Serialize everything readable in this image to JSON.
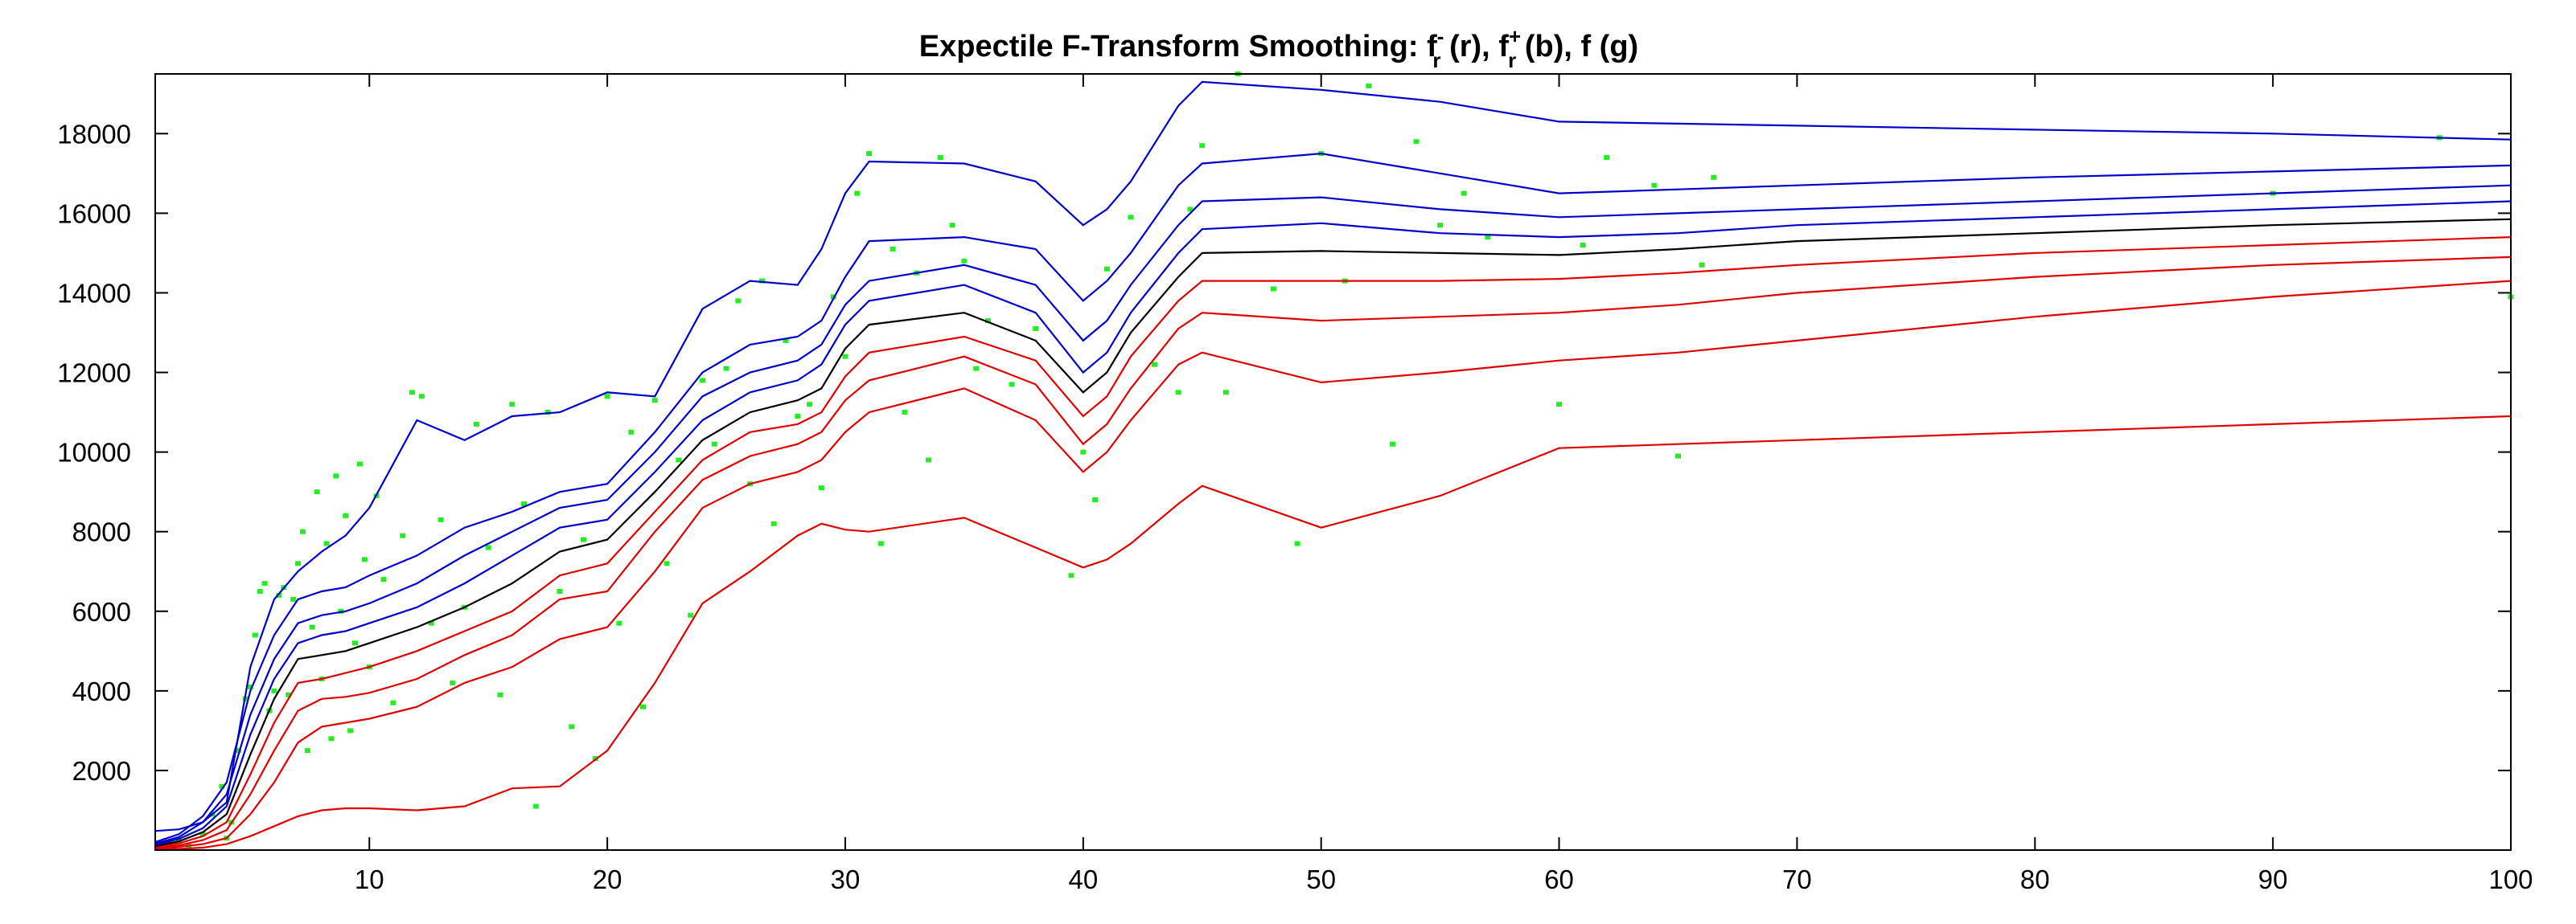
{
  "chart_data": {
    "type": "line",
    "title": {
      "prefix": "Expectile F-Transform Smoothing: ",
      "f1": "f",
      "f1_sub": "r",
      "f1_sup": "-",
      "s1": " (r), ",
      "f2": "f",
      "f2_sub": "r",
      "f2_sup": "+",
      "s2": " (b), f (g)"
    },
    "xlabel": "",
    "ylabel": "",
    "xlim": [
      1,
      100
    ],
    "ylim": [
      0,
      19500
    ],
    "xticks": [
      10,
      20,
      30,
      40,
      50,
      60,
      70,
      80,
      90,
      100
    ],
    "yticks": [
      2000,
      4000,
      6000,
      8000,
      10000,
      12000,
      14000,
      16000,
      18000
    ],
    "grid": false,
    "colors": {
      "lower": "#e00000",
      "upper": "#0000cc",
      "middle": "#000000",
      "points": "#22ee22"
    },
    "x": [
      1,
      2,
      3,
      4,
      5,
      6,
      7,
      8,
      9,
      10,
      12,
      14,
      16,
      18,
      20,
      22,
      24,
      26,
      28,
      29,
      30,
      31,
      35,
      38,
      40,
      41,
      42,
      44,
      45,
      50,
      55,
      60,
      65,
      70,
      80,
      90,
      100
    ],
    "series": [
      {
        "role": "lower",
        "values": [
          20,
          30,
          60,
          150,
          350,
          600,
          850,
          1000,
          1050,
          1050,
          1000,
          1100,
          1550,
          1600,
          2500,
          4200,
          6200,
          7000,
          7900,
          8200,
          8050,
          8000,
          8350,
          7600,
          7100,
          7300,
          7700,
          8700,
          9150,
          8100,
          8900,
          10100,
          10200,
          10300,
          10500,
          10700,
          10900
        ]
      },
      {
        "role": "lower",
        "values": [
          40,
          80,
          150,
          300,
          900,
          1700,
          2700,
          3100,
          3200,
          3300,
          3600,
          4200,
          4600,
          5300,
          5600,
          7000,
          8600,
          9200,
          9500,
          9800,
          10500,
          11000,
          11600,
          10800,
          9500,
          10000,
          10800,
          12200,
          12500,
          11750,
          12000,
          12300,
          12500,
          12800,
          13400,
          13900,
          14300
        ]
      },
      {
        "role": "lower",
        "values": [
          60,
          120,
          250,
          500,
          1400,
          2500,
          3500,
          3800,
          3850,
          3950,
          4300,
          4900,
          5400,
          6300,
          6500,
          8000,
          9300,
          9900,
          10200,
          10500,
          11300,
          11800,
          12400,
          11700,
          10200,
          10700,
          11600,
          13100,
          13500,
          13300,
          13400,
          13500,
          13700,
          14000,
          14400,
          14700,
          14900
        ]
      },
      {
        "role": "lower",
        "values": [
          80,
          170,
          350,
          700,
          1900,
          3200,
          4200,
          4300,
          4450,
          4600,
          5000,
          5500,
          6000,
          6900,
          7200,
          8500,
          9800,
          10500,
          10700,
          11000,
          11900,
          12500,
          12900,
          12300,
          10900,
          11400,
          12400,
          13800,
          14300,
          14300,
          14300,
          14350,
          14500,
          14700,
          15000,
          15200,
          15400
        ]
      },
      {
        "role": "middle",
        "values": [
          100,
          220,
          450,
          900,
          2400,
          3800,
          4800,
          4900,
          5000,
          5200,
          5600,
          6100,
          6700,
          7500,
          7800,
          9000,
          10300,
          11000,
          11300,
          11600,
          12600,
          13200,
          13500,
          12800,
          11500,
          12000,
          13000,
          14400,
          15000,
          15050,
          15000,
          14950,
          15100,
          15300,
          15500,
          15700,
          15850
        ]
      },
      {
        "role": "upper",
        "values": [
          130,
          280,
          550,
          1100,
          2900,
          4300,
          5200,
          5400,
          5500,
          5700,
          6100,
          6700,
          7400,
          8100,
          8300,
          9500,
          10800,
          11500,
          11800,
          12200,
          13200,
          13800,
          14200,
          13500,
          12000,
          12500,
          13500,
          15000,
          15600,
          15750,
          15500,
          15400,
          15500,
          15700,
          15900,
          16100,
          16300
        ]
      },
      {
        "role": "upper",
        "values": [
          160,
          330,
          700,
          1400,
          3400,
          4800,
          5700,
          5900,
          6000,
          6200,
          6700,
          7400,
          8000,
          8600,
          8800,
          10000,
          11400,
          12000,
          12300,
          12700,
          13700,
          14300,
          14700,
          14200,
          12800,
          13300,
          14200,
          15700,
          16300,
          16400,
          16100,
          15900,
          16000,
          16100,
          16300,
          16500,
          16700
        ]
      },
      {
        "role": "upper",
        "values": [
          200,
          400,
          850,
          1700,
          4000,
          5400,
          6300,
          6500,
          6600,
          6900,
          7400,
          8100,
          8500,
          9000,
          9200,
          10500,
          12000,
          12700,
          12900,
          13300,
          14400,
          15300,
          15400,
          15100,
          13800,
          14300,
          15000,
          16700,
          17250,
          17500,
          17000,
          16500,
          16600,
          16700,
          16900,
          17050,
          17200
        ]
      },
      {
        "role": "upper",
        "values": [
          480,
          520,
          700,
          1200,
          4600,
          6300,
          7000,
          7500,
          7900,
          8600,
          10800,
          10300,
          10900,
          11000,
          11500,
          11400,
          13600,
          14300,
          14200,
          15100,
          16500,
          17300,
          17250,
          16800,
          15700,
          16100,
          16800,
          18700,
          19300,
          19100,
          18800,
          18300,
          18250,
          18200,
          18100,
          18000,
          17850
        ]
      }
    ],
    "points": [
      [
        1.5,
        150
      ],
      [
        2.0,
        250
      ],
      [
        2.4,
        100
      ],
      [
        3.0,
        400
      ],
      [
        3.4,
        900
      ],
      [
        3.8,
        1600
      ],
      [
        4.0,
        300
      ],
      [
        4.2,
        700
      ],
      [
        4.5,
        2500
      ],
      [
        4.8,
        3800
      ],
      [
        5.0,
        4100
      ],
      [
        5.2,
        5400
      ],
      [
        5.4,
        6500
      ],
      [
        5.6,
        6700
      ],
      [
        5.8,
        3500
      ],
      [
        6.0,
        4000
      ],
      [
        6.2,
        6400
      ],
      [
        6.4,
        6600
      ],
      [
        6.6,
        3900
      ],
      [
        6.8,
        6300
      ],
      [
        7.0,
        7200
      ],
      [
        7.2,
        8000
      ],
      [
        7.4,
        2500
      ],
      [
        7.6,
        5600
      ],
      [
        7.8,
        9000
      ],
      [
        8.0,
        4300
      ],
      [
        8.2,
        7700
      ],
      [
        8.4,
        2800
      ],
      [
        8.6,
        9400
      ],
      [
        8.8,
        6000
      ],
      [
        9.0,
        8400
      ],
      [
        9.2,
        3000
      ],
      [
        9.4,
        5200
      ],
      [
        9.6,
        9700
      ],
      [
        9.8,
        7300
      ],
      [
        10.0,
        4600
      ],
      [
        10.3,
        8900
      ],
      [
        10.6,
        6800
      ],
      [
        11.0,
        3700
      ],
      [
        11.4,
        7900
      ],
      [
        11.8,
        11500
      ],
      [
        12.2,
        11400
      ],
      [
        12.6,
        5700
      ],
      [
        13.0,
        8300
      ],
      [
        13.5,
        4200
      ],
      [
        14.0,
        6100
      ],
      [
        14.5,
        10700
      ],
      [
        15.0,
        7600
      ],
      [
        15.5,
        3900
      ],
      [
        16.0,
        11200
      ],
      [
        16.5,
        8700
      ],
      [
        17.0,
        1100
      ],
      [
        17.5,
        11000
      ],
      [
        18.0,
        6500
      ],
      [
        18.5,
        3100
      ],
      [
        19.0,
        7800
      ],
      [
        19.5,
        2300
      ],
      [
        20.0,
        11400
      ],
      [
        20.5,
        5700
      ],
      [
        21.0,
        10500
      ],
      [
        21.5,
        3600
      ],
      [
        22.0,
        11300
      ],
      [
        22.5,
        7200
      ],
      [
        23.0,
        9800
      ],
      [
        23.5,
        5900
      ],
      [
        24.0,
        11800
      ],
      [
        24.5,
        10200
      ],
      [
        25.0,
        12100
      ],
      [
        25.5,
        13800
      ],
      [
        26.0,
        9200
      ],
      [
        26.5,
        14300
      ],
      [
        27.0,
        8200
      ],
      [
        27.5,
        12800
      ],
      [
        28.0,
        10900
      ],
      [
        28.5,
        11200
      ],
      [
        29.0,
        9100
      ],
      [
        29.5,
        13900
      ],
      [
        30.0,
        12400
      ],
      [
        30.5,
        16500
      ],
      [
        31.0,
        17500
      ],
      [
        31.5,
        7700
      ],
      [
        32.0,
        15100
      ],
      [
        32.5,
        11000
      ],
      [
        33.0,
        14500
      ],
      [
        33.5,
        9800
      ],
      [
        34.0,
        17400
      ],
      [
        34.5,
        15700
      ],
      [
        35.0,
        14800
      ],
      [
        35.5,
        12100
      ],
      [
        36.0,
        13300
      ],
      [
        37.0,
        11700
      ],
      [
        38.0,
        13100
      ],
      [
        39.5,
        6900
      ],
      [
        40.0,
        10000
      ],
      [
        40.5,
        8800
      ],
      [
        41.0,
        14600
      ],
      [
        42.0,
        15900
      ],
      [
        43.0,
        12200
      ],
      [
        44.0,
        11500
      ],
      [
        44.5,
        16100
      ],
      [
        45.0,
        17700
      ],
      [
        46.0,
        11500
      ],
      [
        46.5,
        19500
      ],
      [
        48.0,
        14100
      ],
      [
        49.0,
        7700
      ],
      [
        50.0,
        17500
      ],
      [
        51.0,
        14300
      ],
      [
        52.0,
        19200
      ],
      [
        53.0,
        10200
      ],
      [
        54.0,
        17800
      ],
      [
        55.0,
        15700
      ],
      [
        56.0,
        16500
      ],
      [
        57.0,
        15400
      ],
      [
        60.0,
        11200
      ],
      [
        61.0,
        15200
      ],
      [
        62.0,
        17400
      ],
      [
        64.0,
        16700
      ],
      [
        65.0,
        9900
      ],
      [
        66.0,
        14700
      ],
      [
        66.5,
        16900
      ],
      [
        90.0,
        16500
      ],
      [
        97.0,
        17900
      ],
      [
        100.0,
        13900
      ]
    ]
  }
}
